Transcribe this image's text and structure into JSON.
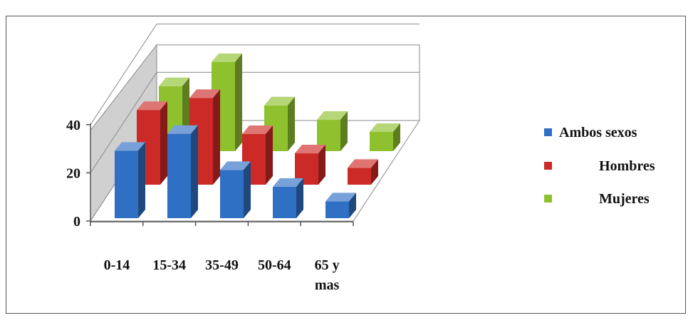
{
  "chart_data": {
    "type": "bar",
    "title": "",
    "xlabel": "",
    "ylabel": "",
    "categories": [
      "0-14",
      "15-34",
      "35-49",
      "50-64",
      "65 y mas"
    ],
    "category_lines": [
      [
        "0-14"
      ],
      [
        "15-34"
      ],
      [
        "35-49"
      ],
      [
        "50-64"
      ],
      [
        "65 y",
        "mas"
      ]
    ],
    "series": [
      {
        "name": "Ambos sexos",
        "values": [
          28,
          35,
          20,
          13,
          7
        ],
        "color": "#2f6fc4"
      },
      {
        "name": "Hombres",
        "values": [
          31,
          36,
          21,
          13,
          7
        ],
        "color": "#cc2a27"
      },
      {
        "name": "Mujeres",
        "values": [
          27,
          37,
          19,
          13,
          8
        ],
        "color": "#8fc12f"
      }
    ],
    "yticks": [
      "0",
      "20",
      "40"
    ],
    "ylim": [
      0,
      60
    ],
    "grid": true,
    "legend_position": "right",
    "three_d": true
  }
}
